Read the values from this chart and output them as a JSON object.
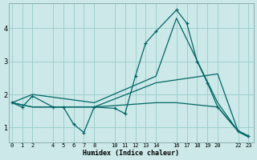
{
  "xlabel": "Humidex (Indice chaleur)",
  "bg_color": "#cce8e8",
  "grid_color": "#99cccc",
  "line_color": "#006666",
  "ylim": [
    0.55,
    4.75
  ],
  "xlim": [
    -0.3,
    23.5
  ],
  "x_ticks": [
    0,
    1,
    2,
    4,
    5,
    6,
    7,
    8,
    10,
    11,
    12,
    13,
    14,
    16,
    17,
    18,
    19,
    20,
    22,
    23
  ],
  "yticks": [
    1,
    2,
    3,
    4
  ],
  "line1_x": [
    0,
    1,
    2,
    4,
    5,
    6,
    7,
    8,
    10,
    11,
    12,
    13,
    14,
    16,
    17,
    18,
    19,
    20,
    22,
    23
  ],
  "line1_y": [
    1.75,
    1.62,
    1.95,
    1.62,
    1.62,
    1.1,
    0.85,
    1.62,
    1.58,
    1.42,
    2.55,
    3.55,
    3.9,
    4.55,
    4.15,
    3.0,
    2.35,
    1.62,
    0.9,
    0.75
  ],
  "line2_x": [
    0,
    2,
    8,
    14,
    16,
    20,
    22,
    23
  ],
  "line2_y": [
    1.75,
    2.0,
    1.75,
    2.55,
    4.3,
    1.75,
    0.88,
    0.72
  ],
  "line3_x": [
    0,
    2,
    8,
    14,
    16,
    20,
    22,
    23
  ],
  "line3_y": [
    1.75,
    1.62,
    1.62,
    1.75,
    1.75,
    1.62,
    0.88,
    0.72
  ],
  "line4_x": [
    0,
    2,
    8,
    14,
    20,
    22,
    23
  ],
  "line4_y": [
    1.75,
    1.62,
    1.62,
    2.35,
    2.62,
    0.88,
    0.72
  ]
}
